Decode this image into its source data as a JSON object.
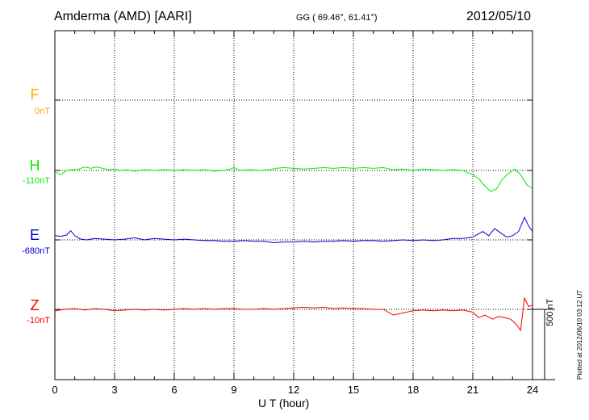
{
  "header": {
    "station": "Amderma (AMD)  [AARI]",
    "coords": "GG ( 69.46°,  61.41°)",
    "date": "2012/05/10"
  },
  "footer": {
    "plotted": "Plotted at 2012/06/10 03:12 UT"
  },
  "chart_data": {
    "type": "line",
    "xlabel": "U T (hour)",
    "xlim": [
      0,
      24
    ],
    "xticks": [
      0,
      3,
      6,
      9,
      12,
      15,
      18,
      21,
      24
    ],
    "scale_label": "500 nT",
    "grid": true,
    "series": [
      {
        "name": "F",
        "baseline_label": "0nT",
        "color": "#ffa500",
        "values": []
      },
      {
        "name": "H",
        "baseline_label": "-110nT",
        "color": "#00ee00",
        "points": [
          [
            0,
            -10
          ],
          [
            0.3,
            -30
          ],
          [
            0.6,
            0
          ],
          [
            0.9,
            5
          ],
          [
            1.2,
            10
          ],
          [
            1.5,
            25
          ],
          [
            1.8,
            15
          ],
          [
            2.1,
            25
          ],
          [
            2.4,
            15
          ],
          [
            2.7,
            5
          ],
          [
            3.0,
            10
          ],
          [
            3.3,
            0
          ],
          [
            3.6,
            5
          ],
          [
            4.0,
            -5
          ],
          [
            4.5,
            5
          ],
          [
            5.0,
            0
          ],
          [
            5.5,
            5
          ],
          [
            6.0,
            0
          ],
          [
            6.5,
            5
          ],
          [
            7.0,
            0
          ],
          [
            7.5,
            5
          ],
          [
            8.0,
            -5
          ],
          [
            8.5,
            0
          ],
          [
            8.8,
            10
          ],
          [
            9.0,
            20
          ],
          [
            9.3,
            0
          ],
          [
            9.8,
            5
          ],
          [
            10.3,
            0
          ],
          [
            10.8,
            5
          ],
          [
            11.1,
            15
          ],
          [
            11.5,
            20
          ],
          [
            12.0,
            15
          ],
          [
            12.5,
            10
          ],
          [
            13.0,
            15
          ],
          [
            13.5,
            20
          ],
          [
            14.0,
            15
          ],
          [
            14.5,
            20
          ],
          [
            15.0,
            15
          ],
          [
            15.5,
            20
          ],
          [
            16.0,
            15
          ],
          [
            16.5,
            20
          ],
          [
            17.0,
            5
          ],
          [
            17.5,
            10
          ],
          [
            18.0,
            0
          ],
          [
            18.5,
            10
          ],
          [
            19.0,
            5
          ],
          [
            19.5,
            0
          ],
          [
            20.0,
            5
          ],
          [
            20.5,
            0
          ],
          [
            21.0,
            -30
          ],
          [
            21.3,
            -60
          ],
          [
            21.6,
            -110
          ],
          [
            21.9,
            -150
          ],
          [
            22.2,
            -130
          ],
          [
            22.5,
            -60
          ],
          [
            22.8,
            -20
          ],
          [
            23.1,
            10
          ],
          [
            23.4,
            -30
          ],
          [
            23.7,
            -100
          ],
          [
            24.0,
            -130
          ]
        ]
      },
      {
        "name": "E",
        "baseline_label": "-680nT",
        "color": "#0000cc",
        "points": [
          [
            0,
            30
          ],
          [
            0.3,
            25
          ],
          [
            0.6,
            35
          ],
          [
            0.8,
            65
          ],
          [
            1.0,
            30
          ],
          [
            1.3,
            5
          ],
          [
            1.6,
            0
          ],
          [
            2.0,
            10
          ],
          [
            2.5,
            5
          ],
          [
            3.0,
            0
          ],
          [
            3.5,
            5
          ],
          [
            4.0,
            15
          ],
          [
            4.5,
            0
          ],
          [
            5.0,
            10
          ],
          [
            5.5,
            5
          ],
          [
            6.0,
            0
          ],
          [
            6.5,
            5
          ],
          [
            7.0,
            0
          ],
          [
            7.5,
            -5
          ],
          [
            8.0,
            -5
          ],
          [
            8.5,
            -10
          ],
          [
            9.0,
            -10
          ],
          [
            9.5,
            -5
          ],
          [
            10.0,
            -10
          ],
          [
            10.5,
            -10
          ],
          [
            11.0,
            -20
          ],
          [
            11.5,
            -15
          ],
          [
            12.0,
            -15
          ],
          [
            12.5,
            -10
          ],
          [
            13.0,
            -15
          ],
          [
            13.5,
            -10
          ],
          [
            14.0,
            -10
          ],
          [
            14.5,
            -5
          ],
          [
            15.0,
            -10
          ],
          [
            15.5,
            -5
          ],
          [
            16.0,
            -5
          ],
          [
            16.5,
            -10
          ],
          [
            17.0,
            -5
          ],
          [
            17.5,
            0
          ],
          [
            18.0,
            -5
          ],
          [
            18.5,
            0
          ],
          [
            19.0,
            -5
          ],
          [
            19.5,
            0
          ],
          [
            20.0,
            10
          ],
          [
            20.5,
            10
          ],
          [
            21.0,
            20
          ],
          [
            21.5,
            60
          ],
          [
            21.8,
            30
          ],
          [
            22.1,
            80
          ],
          [
            22.4,
            50
          ],
          [
            22.7,
            20
          ],
          [
            23.0,
            30
          ],
          [
            23.3,
            60
          ],
          [
            23.6,
            160
          ],
          [
            23.8,
            100
          ],
          [
            24.0,
            60
          ]
        ]
      },
      {
        "name": "Z",
        "baseline_label": "-10nT",
        "color": "#ee0000",
        "points": [
          [
            0,
            -10
          ],
          [
            0.5,
            0
          ],
          [
            1.0,
            5
          ],
          [
            1.5,
            -5
          ],
          [
            2.0,
            5
          ],
          [
            2.5,
            0
          ],
          [
            3.0,
            -10
          ],
          [
            3.5,
            -5
          ],
          [
            4.0,
            0
          ],
          [
            4.5,
            -5
          ],
          [
            5.0,
            0
          ],
          [
            5.5,
            -5
          ],
          [
            6.0,
            0
          ],
          [
            6.5,
            5
          ],
          [
            7.0,
            0
          ],
          [
            7.5,
            5
          ],
          [
            8.0,
            0
          ],
          [
            8.5,
            5
          ],
          [
            9.0,
            5
          ],
          [
            9.5,
            0
          ],
          [
            10.0,
            0
          ],
          [
            10.5,
            5
          ],
          [
            11.0,
            0
          ],
          [
            11.5,
            5
          ],
          [
            12.0,
            10
          ],
          [
            12.5,
            15
          ],
          [
            13.0,
            10
          ],
          [
            13.5,
            15
          ],
          [
            14.0,
            5
          ],
          [
            14.5,
            10
          ],
          [
            15.0,
            5
          ],
          [
            15.5,
            5
          ],
          [
            16.0,
            0
          ],
          [
            16.5,
            0
          ],
          [
            17.0,
            -40
          ],
          [
            17.5,
            -25
          ],
          [
            18.0,
            -10
          ],
          [
            18.5,
            -5
          ],
          [
            19.0,
            -10
          ],
          [
            19.5,
            -5
          ],
          [
            20.0,
            -10
          ],
          [
            20.5,
            -5
          ],
          [
            21.0,
            -20
          ],
          [
            21.3,
            -60
          ],
          [
            21.6,
            -40
          ],
          [
            22.0,
            -70
          ],
          [
            22.3,
            -50
          ],
          [
            22.6,
            -60
          ],
          [
            22.9,
            -70
          ],
          [
            23.2,
            -110
          ],
          [
            23.4,
            -150
          ],
          [
            23.6,
            80
          ],
          [
            23.8,
            20
          ],
          [
            24.0,
            30
          ]
        ]
      }
    ]
  }
}
